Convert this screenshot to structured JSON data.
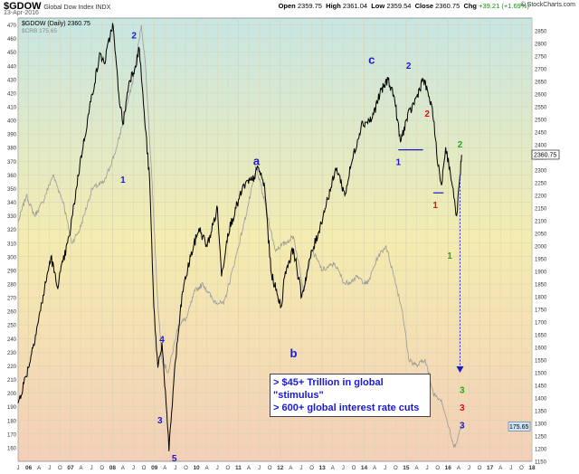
{
  "header": {
    "symbol": "$GDOW",
    "name": "Global Dow Index INDX",
    "date": "13-Apr-2016",
    "open_label": "Open",
    "open": "2359.75",
    "high_label": "High",
    "high": "2361.04",
    "low_label": "Low",
    "low": "2359.54",
    "close_label": "Close",
    "close": "2360.75",
    "chg_label": "Chg",
    "chg": "+39.21 (+1.69%)",
    "brand": "© StockCharts.com"
  },
  "legend": {
    "primary": "$GDOW (Daily) 2360.75",
    "secondary": "$CRB 175.65"
  },
  "chart_data": {
    "type": "line",
    "xlabel": "",
    "ylabel": "",
    "left_axis": {
      "range": [
        150,
        475
      ],
      "ticks": [
        160,
        170,
        180,
        190,
        200,
        210,
        220,
        230,
        240,
        250,
        260,
        270,
        280,
        290,
        300,
        310,
        320,
        330,
        340,
        350,
        360,
        370,
        380,
        390,
        400,
        410,
        420,
        430,
        440,
        450,
        460,
        470
      ]
    },
    "right_axis": {
      "range": [
        1150,
        2900
      ],
      "ticks": [
        1150,
        1200,
        1250,
        1300,
        1350,
        1400,
        1450,
        1500,
        1550,
        1600,
        1650,
        1700,
        1750,
        1800,
        1850,
        1900,
        1950,
        2000,
        2050,
        2100,
        2150,
        2200,
        2250,
        2300,
        2350,
        2400,
        2450,
        2500,
        2550,
        2600,
        2650,
        2700,
        2750,
        2800,
        2850
      ]
    },
    "x_ticks": [
      "J",
      "06",
      "A",
      "J",
      "O",
      "07",
      "A",
      "J",
      "O",
      "08",
      "A",
      "J",
      "O",
      "09",
      "A",
      "J",
      "O",
      "10",
      "A",
      "J",
      "O",
      "11",
      "A",
      "J",
      "O",
      "12",
      "A",
      "J",
      "O",
      "13",
      "A",
      "J",
      "O",
      "14",
      "A",
      "J",
      "O",
      "15",
      "A",
      "J",
      "O",
      "16",
      "A",
      "J",
      "O",
      "17",
      "A",
      "J",
      "O",
      "18"
    ],
    "series": [
      {
        "name": "$GDOW",
        "axis": "right",
        "color": "#000000",
        "points": [
          [
            2005.5,
            1380
          ],
          [
            2005.75,
            1520
          ],
          [
            2006.0,
            1710
          ],
          [
            2006.3,
            1960
          ],
          [
            2006.45,
            1840
          ],
          [
            2006.75,
            2040
          ],
          [
            2007.0,
            2320
          ],
          [
            2007.3,
            2600
          ],
          [
            2007.5,
            2760
          ],
          [
            2007.6,
            2720
          ],
          [
            2007.8,
            2880
          ],
          [
            2007.95,
            2600
          ],
          [
            2008.05,
            2480
          ],
          [
            2008.2,
            2650
          ],
          [
            2008.35,
            2710
          ],
          [
            2008.45,
            2780
          ],
          [
            2008.55,
            2560
          ],
          [
            2008.7,
            2260
          ],
          [
            2008.8,
            1760
          ],
          [
            2008.9,
            1520
          ],
          [
            2009.0,
            1620
          ],
          [
            2009.1,
            1380
          ],
          [
            2009.17,
            1190
          ],
          [
            2009.3,
            1500
          ],
          [
            2009.5,
            1820
          ],
          [
            2009.7,
            1960
          ],
          [
            2009.9,
            2070
          ],
          [
            2010.1,
            2000
          ],
          [
            2010.35,
            2150
          ],
          [
            2010.45,
            1880
          ],
          [
            2010.6,
            2050
          ],
          [
            2010.8,
            2150
          ],
          [
            2011.0,
            2240
          ],
          [
            2011.2,
            2260
          ],
          [
            2011.35,
            2310
          ],
          [
            2011.5,
            2230
          ],
          [
            2011.65,
            1900
          ],
          [
            2011.8,
            1810
          ],
          [
            2011.9,
            1760
          ],
          [
            2012.0,
            1900
          ],
          [
            2012.2,
            1990
          ],
          [
            2012.4,
            1800
          ],
          [
            2012.6,
            1950
          ],
          [
            2012.8,
            2050
          ],
          [
            2013.0,
            2170
          ],
          [
            2013.25,
            2310
          ],
          [
            2013.45,
            2200
          ],
          [
            2013.6,
            2320
          ],
          [
            2013.85,
            2480
          ],
          [
            2014.1,
            2500
          ],
          [
            2014.3,
            2600
          ],
          [
            2014.5,
            2660
          ],
          [
            2014.65,
            2590
          ],
          [
            2014.8,
            2410
          ],
          [
            2014.95,
            2500
          ],
          [
            2015.2,
            2590
          ],
          [
            2015.35,
            2660
          ],
          [
            2015.5,
            2590
          ],
          [
            2015.62,
            2490
          ],
          [
            2015.7,
            2330
          ],
          [
            2015.8,
            2240
          ],
          [
            2015.9,
            2390
          ],
          [
            2016.0,
            2310
          ],
          [
            2016.1,
            2190
          ],
          [
            2016.17,
            2120
          ],
          [
            2016.25,
            2280
          ],
          [
            2016.29,
            2360
          ]
        ]
      },
      {
        "name": "$CRB",
        "axis": "left",
        "color": "#9a9a9a",
        "points": [
          [
            2005.5,
            325
          ],
          [
            2005.7,
            345
          ],
          [
            2005.9,
            330
          ],
          [
            2006.1,
            340
          ],
          [
            2006.35,
            360
          ],
          [
            2006.6,
            340
          ],
          [
            2006.8,
            310
          ],
          [
            2007.0,
            320
          ],
          [
            2007.3,
            350
          ],
          [
            2007.6,
            355
          ],
          [
            2007.9,
            380
          ],
          [
            2008.1,
            405
          ],
          [
            2008.3,
            430
          ],
          [
            2008.5,
            470
          ],
          [
            2008.6,
            440
          ],
          [
            2008.75,
            360
          ],
          [
            2008.9,
            265
          ],
          [
            2009.0,
            225
          ],
          [
            2009.15,
            215
          ],
          [
            2009.4,
            250
          ],
          [
            2009.6,
            255
          ],
          [
            2009.8,
            275
          ],
          [
            2010.0,
            280
          ],
          [
            2010.25,
            268
          ],
          [
            2010.5,
            265
          ],
          [
            2010.8,
            300
          ],
          [
            2011.0,
            325
          ],
          [
            2011.3,
            365
          ],
          [
            2011.5,
            340
          ],
          [
            2011.75,
            305
          ],
          [
            2012.0,
            310
          ],
          [
            2012.2,
            315
          ],
          [
            2012.45,
            275
          ],
          [
            2012.65,
            305
          ],
          [
            2012.9,
            290
          ],
          [
            2013.2,
            295
          ],
          [
            2013.45,
            280
          ],
          [
            2013.75,
            285
          ],
          [
            2014.0,
            280
          ],
          [
            2014.25,
            300
          ],
          [
            2014.45,
            308
          ],
          [
            2014.65,
            285
          ],
          [
            2014.85,
            260
          ],
          [
            2015.0,
            225
          ],
          [
            2015.2,
            220
          ],
          [
            2015.4,
            225
          ],
          [
            2015.6,
            200
          ],
          [
            2015.8,
            195
          ],
          [
            2015.95,
            178
          ],
          [
            2016.1,
            160
          ],
          [
            2016.2,
            168
          ],
          [
            2016.29,
            175.65
          ]
        ]
      }
    ],
    "annotations": [
      {
        "text": "1",
        "color": "#1a1acc",
        "axis": "right",
        "at": [
          2008.05,
          2250
        ]
      },
      {
        "text": "2",
        "color": "#1a1acc",
        "axis": "right",
        "at": [
          2008.32,
          2820
        ]
      },
      {
        "text": "3",
        "color": "#1a1acc",
        "axis": "right",
        "at": [
          2008.95,
          1300
        ]
      },
      {
        "text": "4",
        "color": "#1a1acc",
        "axis": "right",
        "at": [
          2009.0,
          1620
        ]
      },
      {
        "text": "5",
        "color": "#1a1acc",
        "axis": "right",
        "at": [
          2009.3,
          1150
        ]
      },
      {
        "text": "a",
        "color": "#1a1acc",
        "axis": "right",
        "at": [
          2011.3,
          2320
        ]
      },
      {
        "text": "b",
        "color": "#1a1acc",
        "axis": "right",
        "at": [
          2012.2,
          1560
        ]
      },
      {
        "text": "c",
        "color": "#1a1acc",
        "axis": "right",
        "at": [
          2014.1,
          2720
        ]
      },
      {
        "text": "2",
        "color": "#1a1acc",
        "axis": "right",
        "at": [
          2015.0,
          2700
        ]
      },
      {
        "text": "1",
        "color": "#1a1acc",
        "axis": "right",
        "at": [
          2014.75,
          2320
        ]
      },
      {
        "text": "2",
        "color": "#dd1111",
        "axis": "right",
        "at": [
          2015.45,
          2510
        ]
      },
      {
        "text": "1",
        "color": "#dd1111",
        "axis": "right",
        "at": [
          2015.65,
          2150
        ]
      },
      {
        "text": "1",
        "color": "#22aa22",
        "axis": "right",
        "at": [
          2016.0,
          1950
        ]
      },
      {
        "text": "2",
        "color": "#22aa22",
        "axis": "right",
        "at": [
          2016.25,
          2390
        ]
      },
      {
        "text": "3",
        "color": "#22aa22",
        "axis": "right",
        "at": [
          2016.3,
          1420
        ]
      },
      {
        "text": "3",
        "color": "#dd1111",
        "axis": "right",
        "at": [
          2016.3,
          1350
        ]
      },
      {
        "text": "3",
        "color": "#1a1acc",
        "axis": "right",
        "at": [
          2016.3,
          1280
        ]
      }
    ],
    "levels": [
      {
        "color": "#1a1acc",
        "axis": "right",
        "y": 2380,
        "x": [
          2014.75,
          2015.35
        ]
      },
      {
        "color": "#1a1acc",
        "axis": "right",
        "y": 2210,
        "x": [
          2015.6,
          2015.85
        ]
      }
    ],
    "projection": {
      "color": "#1a1acc",
      "axis": "right",
      "from": [
        2016.25,
        2280
      ],
      "to": [
        2016.25,
        1500
      ]
    },
    "callout": [
      "> $45+ Trillion in global",
      "\"stimulus\"",
      "> 600+ global interest rate cuts"
    ],
    "last_values": {
      "primary": "2360.75",
      "secondary": "175.65"
    },
    "colors": {
      "bg_top": "#c7e6e4",
      "bg_mid": "#f4ecb0",
      "bg_bottom": "#f3cfb8",
      "grid": "#d9d2b0"
    },
    "grid": true
  }
}
